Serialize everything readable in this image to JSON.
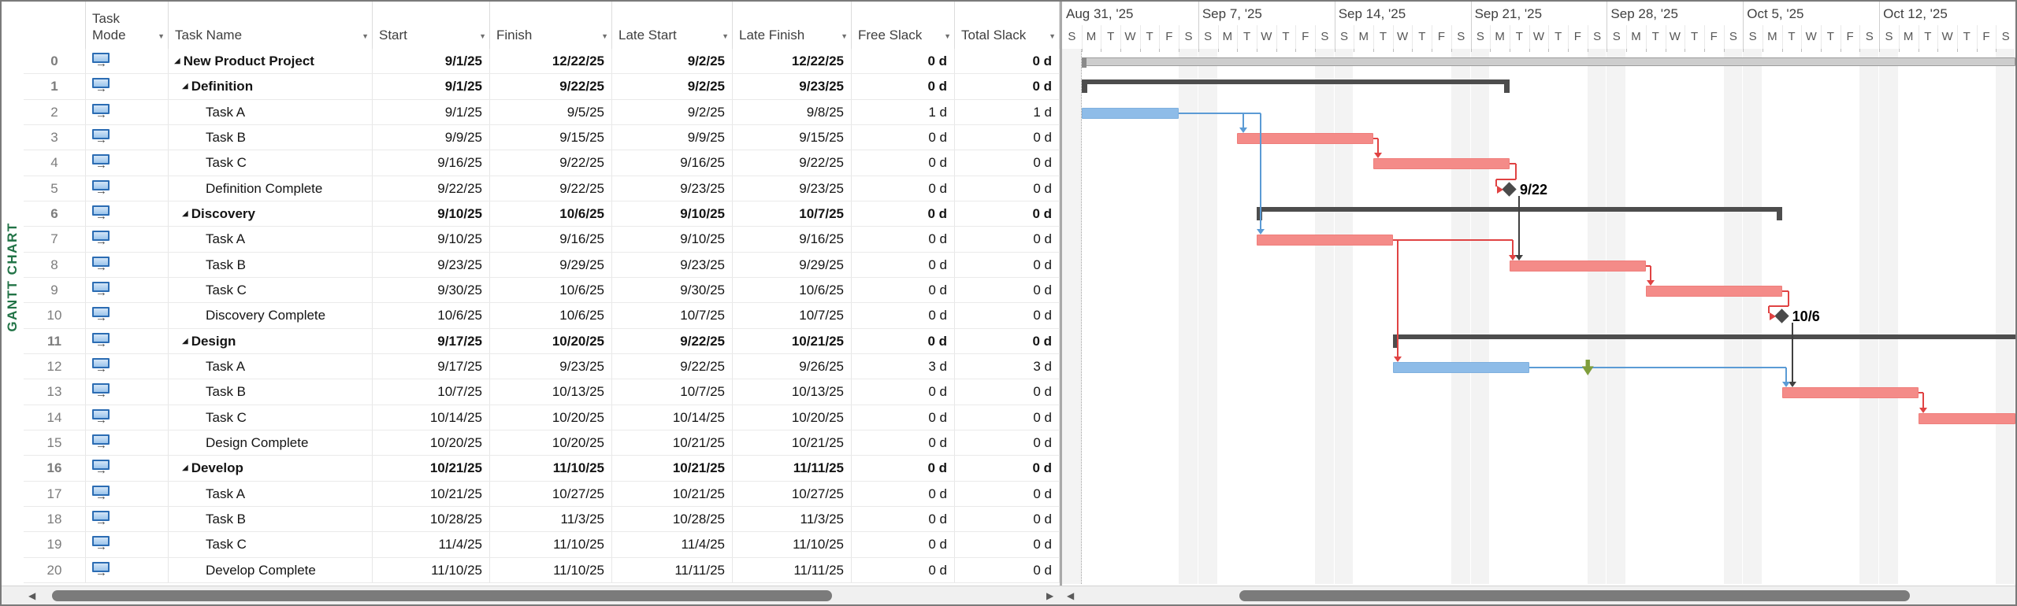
{
  "app": {
    "view_label": "GANTT CHART"
  },
  "table": {
    "headers": [
      {
        "key": "id",
        "label": "",
        "filter": false
      },
      {
        "key": "mode",
        "label": "Task Mode",
        "filter": true
      },
      {
        "key": "name",
        "label": "Task Name",
        "filter": true
      },
      {
        "key": "start",
        "label": "Start",
        "filter": true
      },
      {
        "key": "finish",
        "label": "Finish",
        "filter": true
      },
      {
        "key": "lateStart",
        "label": "Late Start",
        "filter": true
      },
      {
        "key": "lateFinish",
        "label": "Late Finish",
        "filter": true
      },
      {
        "key": "freeSlack",
        "label": "Free Slack",
        "filter": true
      },
      {
        "key": "totalSlack",
        "label": "Total Slack",
        "filter": true
      }
    ],
    "rows": [
      {
        "id": 0,
        "mode": "auto",
        "level": 0,
        "summary": true,
        "name": "New Product Project",
        "start": "9/1/25",
        "finish": "12/22/25",
        "lateStart": "9/2/25",
        "lateFinish": "12/22/25",
        "freeSlack": "0 d",
        "totalSlack": "0 d"
      },
      {
        "id": 1,
        "mode": "auto",
        "level": 1,
        "summary": true,
        "name": "Definition",
        "start": "9/1/25",
        "finish": "9/22/25",
        "lateStart": "9/2/25",
        "lateFinish": "9/23/25",
        "freeSlack": "0 d",
        "totalSlack": "0 d"
      },
      {
        "id": 2,
        "mode": "auto",
        "level": 2,
        "summary": false,
        "name": "Task A",
        "start": "9/1/25",
        "finish": "9/5/25",
        "lateStart": "9/2/25",
        "lateFinish": "9/8/25",
        "freeSlack": "1 d",
        "totalSlack": "1 d"
      },
      {
        "id": 3,
        "mode": "auto",
        "level": 2,
        "summary": false,
        "name": "Task B",
        "start": "9/9/25",
        "finish": "9/15/25",
        "lateStart": "9/9/25",
        "lateFinish": "9/15/25",
        "freeSlack": "0 d",
        "totalSlack": "0 d"
      },
      {
        "id": 4,
        "mode": "auto",
        "level": 2,
        "summary": false,
        "name": "Task C",
        "start": "9/16/25",
        "finish": "9/22/25",
        "lateStart": "9/16/25",
        "lateFinish": "9/22/25",
        "freeSlack": "0 d",
        "totalSlack": "0 d"
      },
      {
        "id": 5,
        "mode": "auto",
        "level": 2,
        "summary": false,
        "name": "Definition Complete",
        "start": "9/22/25",
        "finish": "9/22/25",
        "lateStart": "9/23/25",
        "lateFinish": "9/23/25",
        "freeSlack": "0 d",
        "totalSlack": "0 d"
      },
      {
        "id": 6,
        "mode": "auto",
        "level": 1,
        "summary": true,
        "name": "Discovery",
        "start": "9/10/25",
        "finish": "10/6/25",
        "lateStart": "9/10/25",
        "lateFinish": "10/7/25",
        "freeSlack": "0 d",
        "totalSlack": "0 d"
      },
      {
        "id": 7,
        "mode": "auto",
        "level": 2,
        "summary": false,
        "name": "Task A",
        "start": "9/10/25",
        "finish": "9/16/25",
        "lateStart": "9/10/25",
        "lateFinish": "9/16/25",
        "freeSlack": "0 d",
        "totalSlack": "0 d"
      },
      {
        "id": 8,
        "mode": "auto",
        "level": 2,
        "summary": false,
        "name": "Task B",
        "start": "9/23/25",
        "finish": "9/29/25",
        "lateStart": "9/23/25",
        "lateFinish": "9/29/25",
        "freeSlack": "0 d",
        "totalSlack": "0 d"
      },
      {
        "id": 9,
        "mode": "auto",
        "level": 2,
        "summary": false,
        "name": "Task C",
        "start": "9/30/25",
        "finish": "10/6/25",
        "lateStart": "9/30/25",
        "lateFinish": "10/6/25",
        "freeSlack": "0 d",
        "totalSlack": "0 d"
      },
      {
        "id": 10,
        "mode": "auto",
        "level": 2,
        "summary": false,
        "name": "Discovery Complete",
        "start": "10/6/25",
        "finish": "10/6/25",
        "lateStart": "10/7/25",
        "lateFinish": "10/7/25",
        "freeSlack": "0 d",
        "totalSlack": "0 d"
      },
      {
        "id": 11,
        "mode": "auto",
        "level": 1,
        "summary": true,
        "name": "Design",
        "start": "9/17/25",
        "finish": "10/20/25",
        "lateStart": "9/22/25",
        "lateFinish": "10/21/25",
        "freeSlack": "0 d",
        "totalSlack": "0 d"
      },
      {
        "id": 12,
        "mode": "auto",
        "level": 2,
        "summary": false,
        "name": "Task A",
        "start": "9/17/25",
        "finish": "9/23/25",
        "lateStart": "9/22/25",
        "lateFinish": "9/26/25",
        "freeSlack": "3 d",
        "totalSlack": "3 d"
      },
      {
        "id": 13,
        "mode": "auto",
        "level": 2,
        "summary": false,
        "name": "Task B",
        "start": "10/7/25",
        "finish": "10/13/25",
        "lateStart": "10/7/25",
        "lateFinish": "10/13/25",
        "freeSlack": "0 d",
        "totalSlack": "0 d"
      },
      {
        "id": 14,
        "mode": "auto",
        "level": 2,
        "summary": false,
        "name": "Task C",
        "start": "10/14/25",
        "finish": "10/20/25",
        "lateStart": "10/14/25",
        "lateFinish": "10/20/25",
        "freeSlack": "0 d",
        "totalSlack": "0 d"
      },
      {
        "id": 15,
        "mode": "auto",
        "level": 2,
        "summary": false,
        "name": "Design Complete",
        "start": "10/20/25",
        "finish": "10/20/25",
        "lateStart": "10/21/25",
        "lateFinish": "10/21/25",
        "freeSlack": "0 d",
        "totalSlack": "0 d"
      },
      {
        "id": 16,
        "mode": "auto",
        "level": 1,
        "summary": true,
        "name": "Develop",
        "start": "10/21/25",
        "finish": "11/10/25",
        "lateStart": "10/21/25",
        "lateFinish": "11/11/25",
        "freeSlack": "0 d",
        "totalSlack": "0 d"
      },
      {
        "id": 17,
        "mode": "auto",
        "level": 2,
        "summary": false,
        "name": "Task A",
        "start": "10/21/25",
        "finish": "10/27/25",
        "lateStart": "10/21/25",
        "lateFinish": "10/27/25",
        "freeSlack": "0 d",
        "totalSlack": "0 d"
      },
      {
        "id": 18,
        "mode": "auto",
        "level": 2,
        "summary": false,
        "name": "Task B",
        "start": "10/28/25",
        "finish": "11/3/25",
        "lateStart": "10/28/25",
        "lateFinish": "11/3/25",
        "freeSlack": "0 d",
        "totalSlack": "0 d"
      },
      {
        "id": 19,
        "mode": "auto",
        "level": 2,
        "summary": false,
        "name": "Task C",
        "start": "11/4/25",
        "finish": "11/10/25",
        "lateStart": "11/4/25",
        "lateFinish": "11/10/25",
        "freeSlack": "0 d",
        "totalSlack": "0 d"
      },
      {
        "id": 20,
        "mode": "auto",
        "level": 2,
        "summary": false,
        "name": "Develop Complete",
        "start": "11/10/25",
        "finish": "11/10/25",
        "lateStart": "11/11/25",
        "lateFinish": "11/11/25",
        "freeSlack": "0 d",
        "totalSlack": "0 d"
      }
    ]
  },
  "timeline": {
    "start_date": "8/31/25",
    "days_visible": 49,
    "week_labels": [
      "Aug 31, '25",
      "Sep 7, '25",
      "Sep 14, '25",
      "Sep 21, '25",
      "Sep 28, '25",
      "Oct 5, '25",
      "Oct 12, '25"
    ],
    "day_letters": [
      "S",
      "M",
      "T",
      "W",
      "T",
      "F",
      "S"
    ]
  },
  "chart_data": {
    "type": "gantt",
    "bars": [
      {
        "row": 0,
        "kind": "project"
      },
      {
        "row": 1,
        "kind": "summary"
      },
      {
        "row": 2,
        "kind": "task",
        "critical": false
      },
      {
        "row": 3,
        "kind": "task",
        "critical": true
      },
      {
        "row": 4,
        "kind": "task",
        "critical": true
      },
      {
        "row": 5,
        "kind": "milestone",
        "label": "9/22"
      },
      {
        "row": 6,
        "kind": "summary"
      },
      {
        "row": 7,
        "kind": "task",
        "critical": true
      },
      {
        "row": 8,
        "kind": "task",
        "critical": true
      },
      {
        "row": 9,
        "kind": "task",
        "critical": true
      },
      {
        "row": 10,
        "kind": "milestone",
        "label": "10/6"
      },
      {
        "row": 11,
        "kind": "summary"
      },
      {
        "row": 12,
        "kind": "task",
        "critical": false
      },
      {
        "row": 13,
        "kind": "task",
        "critical": true
      },
      {
        "row": 14,
        "kind": "task",
        "critical": true
      }
    ],
    "links": [
      {
        "from": 2,
        "to": 3,
        "color": "blue"
      },
      {
        "from": 2,
        "to": 7,
        "color": "blue"
      },
      {
        "from": 3,
        "to": 4,
        "color": "red"
      },
      {
        "from": 4,
        "to": 5,
        "color": "red",
        "toMilestone": true
      },
      {
        "from": 7,
        "to": 12,
        "color": "red"
      },
      {
        "from": 7,
        "to": 8,
        "color": "red"
      },
      {
        "from": 5,
        "to": 8,
        "color": "black",
        "fromMilestone": true
      },
      {
        "from": 8,
        "to": 9,
        "color": "red"
      },
      {
        "from": 9,
        "to": 10,
        "color": "red",
        "toMilestone": true
      },
      {
        "from": 10,
        "to": 13,
        "color": "black",
        "fromMilestone": true
      },
      {
        "from": 12,
        "to": 13,
        "color": "blue"
      },
      {
        "from": 13,
        "to": 14,
        "color": "red"
      }
    ],
    "deadline": {
      "row": 12,
      "date": "9/26/25"
    },
    "project_start_line_date": "9/1/25",
    "colors": {
      "critical_bar": "#F48B88",
      "critical_border": "#EF7E7B",
      "noncritical_bar": "#8EBCE8",
      "noncritical_border": "#7FB0DE",
      "summary": "#4D4D4D",
      "project_bar": "#CDCDCD",
      "project_border": "#9C9C9C",
      "milestone": "#4A4A4A",
      "link_blue": "#5B9BD5",
      "link_red": "#E04343",
      "link_black": "#404040",
      "deadline_green": "#7F9E3D",
      "weekend": "#F3F3F3",
      "view_label_green": "#217346"
    }
  }
}
